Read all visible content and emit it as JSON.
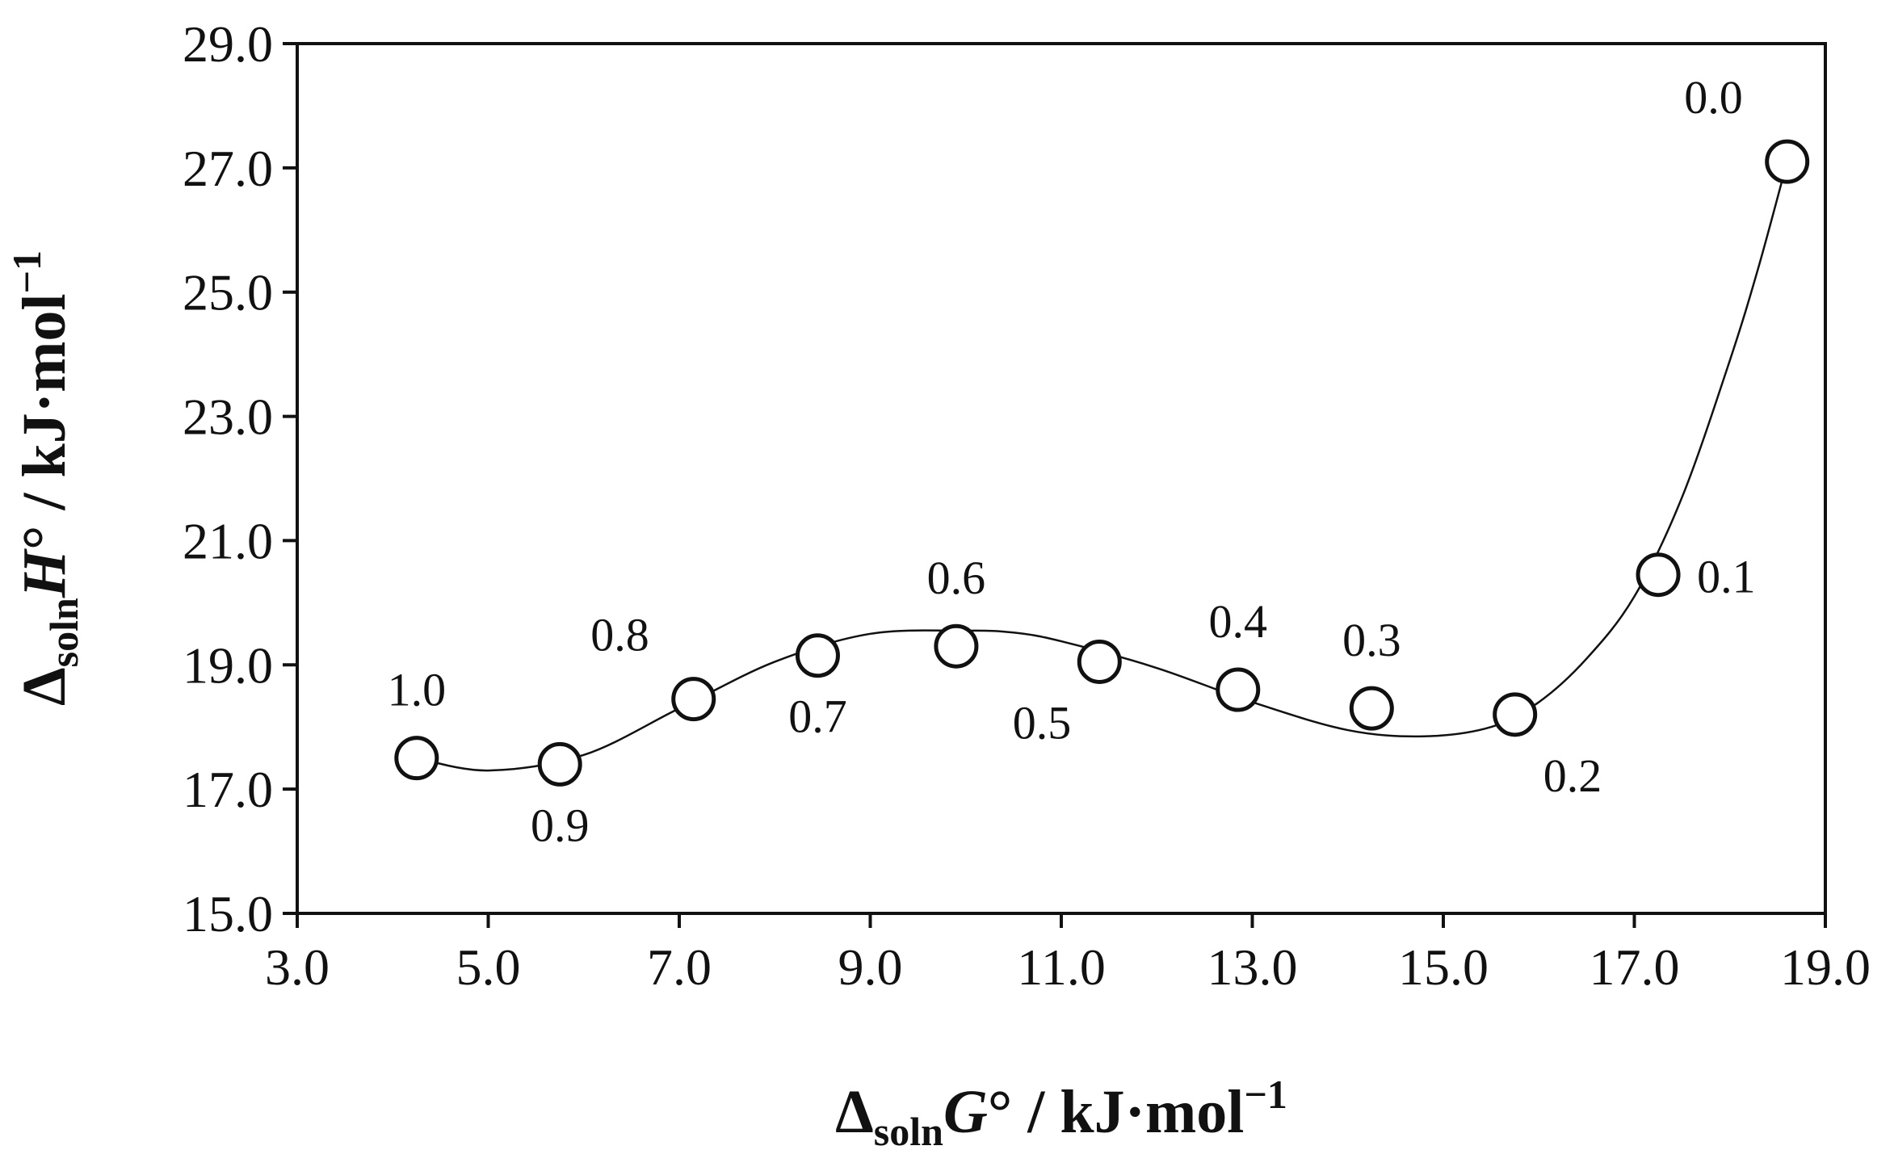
{
  "chart_data": {
    "type": "scatter",
    "xlabel": {
      "delta": "Δ",
      "sub": "soln",
      "sym": "G",
      "unit_pre": "° / kJ·mol",
      "sup": "−1"
    },
    "ylabel": {
      "delta": "Δ",
      "sub": "soln",
      "sym": "H",
      "unit_pre": "° / kJ·mol",
      "sup": "−1"
    },
    "xlim": [
      3.0,
      19.0
    ],
    "ylim": [
      15.0,
      29.0
    ],
    "xticks": [
      3.0,
      5.0,
      7.0,
      9.0,
      11.0,
      13.0,
      15.0,
      17.0,
      19.0
    ],
    "yticks": [
      15.0,
      17.0,
      19.0,
      21.0,
      23.0,
      25.0,
      27.0,
      29.0
    ],
    "tick_format_decimals": 1,
    "grid": false,
    "series": [
      {
        "marker": "open-circle",
        "points": [
          {
            "x": 4.25,
            "y": 17.5,
            "label": "1.0",
            "label_pos": "above"
          },
          {
            "x": 5.75,
            "y": 17.4,
            "label": "0.9",
            "label_pos": "below"
          },
          {
            "x": 7.15,
            "y": 18.45,
            "label": "0.8",
            "label_pos": "above-left"
          },
          {
            "x": 8.45,
            "y": 19.15,
            "label": "0.7",
            "label_pos": "below"
          },
          {
            "x": 9.9,
            "y": 19.3,
            "label": "0.6",
            "label_pos": "above"
          },
          {
            "x": 11.4,
            "y": 19.05,
            "label": "0.5",
            "label_pos": "below-left"
          },
          {
            "x": 12.85,
            "y": 18.6,
            "label": "0.4",
            "label_pos": "above"
          },
          {
            "x": 14.25,
            "y": 18.3,
            "label": "0.3",
            "label_pos": "above"
          },
          {
            "x": 15.75,
            "y": 18.2,
            "label": "0.2",
            "label_pos": "below-right"
          },
          {
            "x": 17.25,
            "y": 20.45,
            "label": "0.1",
            "label_pos": "right"
          },
          {
            "x": 18.6,
            "y": 27.1,
            "label": "0.0",
            "label_pos": "above-left"
          }
        ]
      }
    ],
    "fit_curve": {
      "style": "smooth-line",
      "x": [
        4.25,
        5.0,
        6.0,
        7.0,
        8.0,
        9.0,
        10.0,
        10.5,
        11.0,
        12.0,
        13.0,
        14.0,
        14.8,
        15.5,
        16.0,
        16.5,
        17.0,
        17.5,
        18.0,
        18.3,
        18.6
      ],
      "y": [
        17.5,
        17.3,
        17.55,
        18.3,
        19.05,
        19.5,
        19.55,
        19.52,
        19.38,
        18.95,
        18.4,
        17.95,
        17.85,
        18.0,
        18.4,
        19.1,
        20.1,
        21.7,
        23.9,
        25.4,
        27.1
      ]
    }
  },
  "colors": {
    "ink": "#111111",
    "background": "#ffffff"
  }
}
